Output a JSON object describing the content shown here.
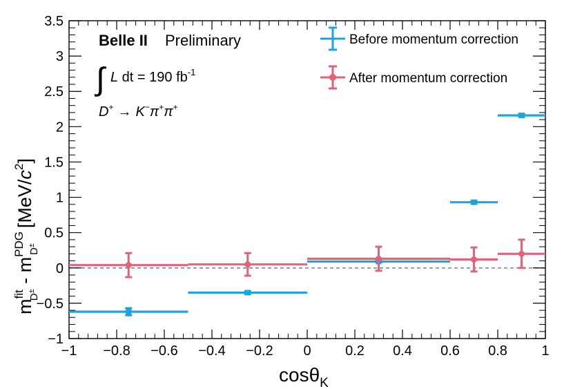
{
  "chart_data": {
    "type": "scatter",
    "title": "",
    "xlabel": "cosθ",
    "xlabel_sub": "K",
    "ylabel_m": "m",
    "ylabel_fit": "fit",
    "ylabel_sub1": "D",
    "ylabel_sup1": "±",
    "ylabel_dash": " - m",
    "ylabel_pdg": "PDG",
    "ylabel_sub2": "D",
    "ylabel_sup2": "±",
    "ylabel_unit_open": "[MeV/",
    "ylabel_unit_c": "c",
    "ylabel_unit_exp": "2",
    "ylabel_unit_close": "]",
    "xlim": [
      -1,
      1
    ],
    "ylim": [
      -1,
      3.5
    ],
    "x_ticks": [
      -1,
      -0.8,
      -0.6,
      -0.4,
      -0.2,
      0,
      0.2,
      0.4,
      0.6,
      0.8,
      1
    ],
    "x_tick_labels": [
      "−1",
      "−0.8",
      "−0.6",
      "−0.4",
      "−0.2",
      "0",
      "0.2",
      "0.4",
      "0.6",
      "0.8",
      "1"
    ],
    "y_ticks": [
      -1,
      -0.5,
      0,
      0.5,
      1,
      1.5,
      2,
      2.5,
      3,
      3.5
    ],
    "y_tick_labels": [
      "−1",
      "−0.5",
      "0",
      "0.5",
      "1",
      "1.5",
      "2",
      "2.5",
      "3",
      "3.5"
    ],
    "reference_line_y": 0,
    "series": [
      {
        "name": "Before momentum correction",
        "color": "#1fa3dc",
        "marker": "square",
        "points": [
          {
            "x": -0.75,
            "xlo": -1.0,
            "xhi": -0.5,
            "y": -0.62,
            "err": 0.05
          },
          {
            "x": -0.25,
            "xlo": -0.5,
            "xhi": 0.0,
            "y": -0.35,
            "err": 0.02
          },
          {
            "x": 0.3,
            "xlo": 0.0,
            "xhi": 0.6,
            "y": 0.09,
            "err": 0.01
          },
          {
            "x": 0.7,
            "xlo": 0.6,
            "xhi": 0.8,
            "y": 0.93,
            "err": 0.02
          },
          {
            "x": 0.9,
            "xlo": 0.8,
            "xhi": 1.0,
            "y": 2.16,
            "err": 0.02
          }
        ]
      },
      {
        "name": "After momentum correction",
        "color": "#e06378",
        "marker": "circle",
        "points": [
          {
            "x": -0.75,
            "xlo": -1.0,
            "xhi": -0.5,
            "y": 0.04,
            "err": 0.17
          },
          {
            "x": -0.25,
            "xlo": -0.5,
            "xhi": 0.0,
            "y": 0.05,
            "err": 0.16
          },
          {
            "x": 0.3,
            "xlo": 0.0,
            "xhi": 0.6,
            "y": 0.13,
            "err": 0.17
          },
          {
            "x": 0.7,
            "xlo": 0.6,
            "xhi": 0.8,
            "y": 0.12,
            "err": 0.17
          },
          {
            "x": 0.9,
            "xlo": 0.8,
            "xhi": 1.0,
            "y": 0.2,
            "err": 0.2
          }
        ]
      }
    ],
    "annotations": {
      "experiment": "Belle II",
      "status": "Preliminary",
      "integral_sign": "∫",
      "lumi_L": "L",
      "lumi_text": " dt = 190 fb",
      "lumi_exp": "-1",
      "decay_D": "D",
      "decay_D_sup": "+",
      "decay_arrow": "→",
      "decay_K": "K",
      "decay_K_sup": "−",
      "decay_pi1": "π",
      "decay_pi1_sup": "+",
      "decay_pi2": "π",
      "decay_pi2_sup": "+"
    },
    "legend_position": "top-right"
  }
}
